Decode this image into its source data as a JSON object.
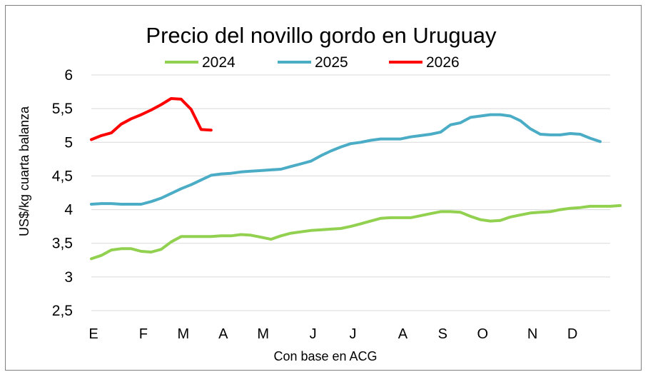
{
  "chart_data": {
    "type": "line",
    "title": "Precio del novillo gordo en Uruguay",
    "xlabel": "Con base en ACG",
    "ylabel": "US$/kg cuarta balanza",
    "ylim": [
      2.5,
      6
    ],
    "yticks": [
      "2,5",
      "3",
      "3,5",
      "4",
      "4,5",
      "5",
      "5,5",
      "6"
    ],
    "xlim": [
      0,
      52
    ],
    "xticks": [
      {
        "label": "E",
        "week": 0
      },
      {
        "label": "F",
        "week": 5
      },
      {
        "label": "M",
        "week": 9
      },
      {
        "label": "A",
        "week": 13
      },
      {
        "label": "M",
        "week": 17
      },
      {
        "label": "J",
        "week": 22
      },
      {
        "label": "J",
        "week": 26
      },
      {
        "label": "A",
        "week": 31
      },
      {
        "label": "S",
        "week": 35
      },
      {
        "label": "O",
        "week": 39
      },
      {
        "label": "N",
        "week": 44
      },
      {
        "label": "D",
        "week": 48
      }
    ],
    "grid": true,
    "legend_position": "top",
    "series": [
      {
        "name": "2024",
        "color": "#92d050",
        "values": [
          3.27,
          3.32,
          3.4,
          3.42,
          3.42,
          3.38,
          3.37,
          3.41,
          3.52,
          3.6,
          3.6,
          3.6,
          3.6,
          3.61,
          3.61,
          3.63,
          3.62,
          3.59,
          3.56,
          3.61,
          3.65,
          3.67,
          3.69,
          3.7,
          3.71,
          3.72,
          3.75,
          3.79,
          3.83,
          3.87,
          3.88,
          3.88,
          3.88,
          3.91,
          3.94,
          3.97,
          3.97,
          3.96,
          3.9,
          3.85,
          3.83,
          3.84,
          3.89,
          3.92,
          3.95,
          3.96,
          3.97,
          4.0,
          4.02,
          4.03,
          4.05,
          4.05,
          4.05,
          4.06
        ]
      },
      {
        "name": "2025",
        "color": "#4bacc6",
        "values": [
          4.08,
          4.09,
          4.09,
          4.08,
          4.08,
          4.08,
          4.12,
          4.17,
          4.24,
          4.31,
          4.37,
          4.44,
          4.51,
          4.53,
          4.54,
          4.56,
          4.57,
          4.58,
          4.59,
          4.6,
          4.64,
          4.68,
          4.72,
          4.8,
          4.87,
          4.93,
          4.98,
          5.0,
          5.03,
          5.05,
          5.05,
          5.05,
          5.08,
          5.1,
          5.12,
          5.15,
          5.26,
          5.29,
          5.37,
          5.39,
          5.41,
          5.41,
          5.39,
          5.32,
          5.2,
          5.12,
          5.11,
          5.11,
          5.13,
          5.12,
          5.06,
          5.01
        ]
      },
      {
        "name": "2026",
        "color": "#ff0000",
        "values": [
          5.04,
          5.1,
          5.14,
          5.27,
          5.35,
          5.41,
          5.48,
          5.56,
          5.65,
          5.64,
          5.49,
          5.19,
          5.18
        ]
      }
    ]
  }
}
